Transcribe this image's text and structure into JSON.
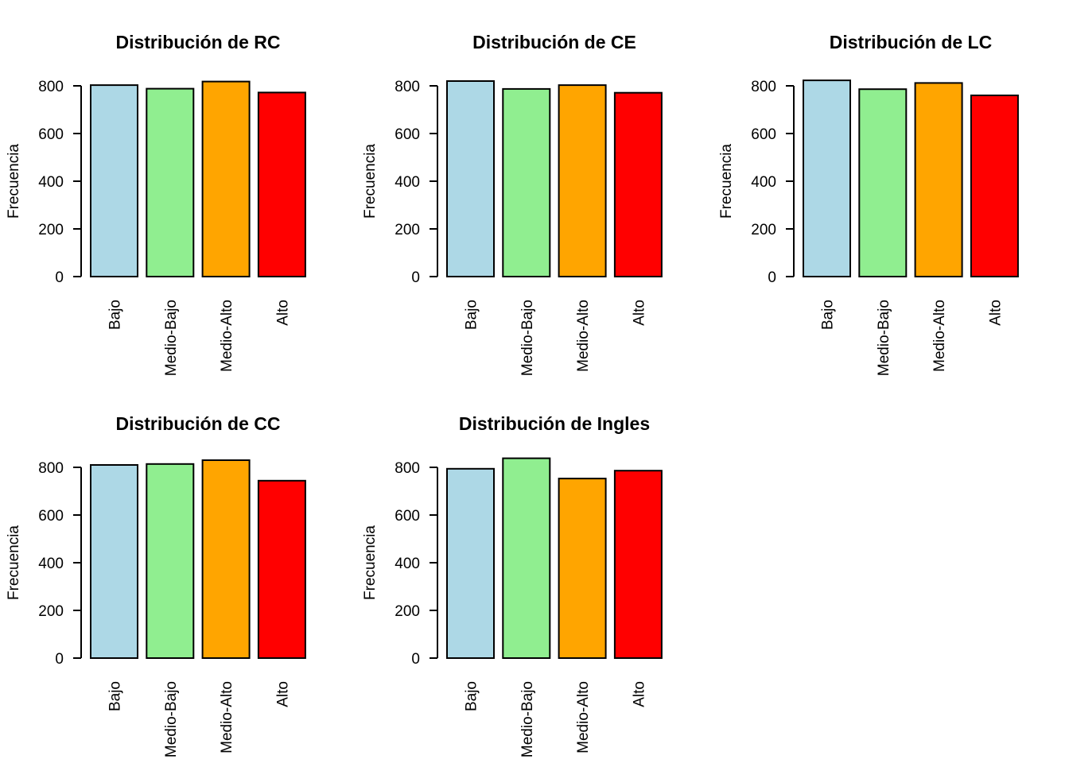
{
  "chart_data": [
    {
      "type": "bar",
      "title": "Distribución de RC",
      "ylabel": "Frecuencia",
      "xlabel": "",
      "categories": [
        "Bajo",
        "Medio-Bajo",
        "Medio-Alto",
        "Alto"
      ],
      "values": [
        803,
        788,
        818,
        772
      ],
      "yticks": [
        "0",
        "200",
        "400",
        "600",
        "800"
      ],
      "ylim": [
        0,
        800
      ],
      "colors": [
        "#ADD8E6",
        "#90EE90",
        "#FFA500",
        "#FF0000"
      ]
    },
    {
      "type": "bar",
      "title": "Distribución de CE",
      "ylabel": "Frecuencia",
      "xlabel": "",
      "categories": [
        "Bajo",
        "Medio-Bajo",
        "Medio-Alto",
        "Alto"
      ],
      "values": [
        820,
        787,
        803,
        771
      ],
      "yticks": [
        "0",
        "200",
        "400",
        "600",
        "800"
      ],
      "ylim": [
        0,
        800
      ],
      "colors": [
        "#ADD8E6",
        "#90EE90",
        "#FFA500",
        "#FF0000"
      ]
    },
    {
      "type": "bar",
      "title": "Distribución de LC",
      "ylabel": "Frecuencia",
      "xlabel": "",
      "categories": [
        "Bajo",
        "Medio-Bajo",
        "Medio-Alto",
        "Alto"
      ],
      "values": [
        823,
        786,
        812,
        760
      ],
      "yticks": [
        "0",
        "200",
        "400",
        "600",
        "800"
      ],
      "ylim": [
        0,
        800
      ],
      "colors": [
        "#ADD8E6",
        "#90EE90",
        "#FFA500",
        "#FF0000"
      ]
    },
    {
      "type": "bar",
      "title": "Distribución de CC",
      "ylabel": "Frecuencia",
      "xlabel": "",
      "categories": [
        "Bajo",
        "Medio-Bajo",
        "Medio-Alto",
        "Alto"
      ],
      "values": [
        810,
        814,
        830,
        744
      ],
      "yticks": [
        "0",
        "200",
        "400",
        "600",
        "800"
      ],
      "ylim": [
        0,
        800
      ],
      "colors": [
        "#ADD8E6",
        "#90EE90",
        "#FFA500",
        "#FF0000"
      ]
    },
    {
      "type": "bar",
      "title": "Distribución de Ingles",
      "ylabel": "Frecuencia",
      "xlabel": "",
      "categories": [
        "Bajo",
        "Medio-Bajo",
        "Medio-Alto",
        "Alto"
      ],
      "values": [
        794,
        838,
        753,
        786
      ],
      "yticks": [
        "0",
        "200",
        "400",
        "600",
        "800"
      ],
      "ylim": [
        0,
        800
      ],
      "colors": [
        "#ADD8E6",
        "#90EE90",
        "#FFA500",
        "#FF0000"
      ]
    }
  ]
}
